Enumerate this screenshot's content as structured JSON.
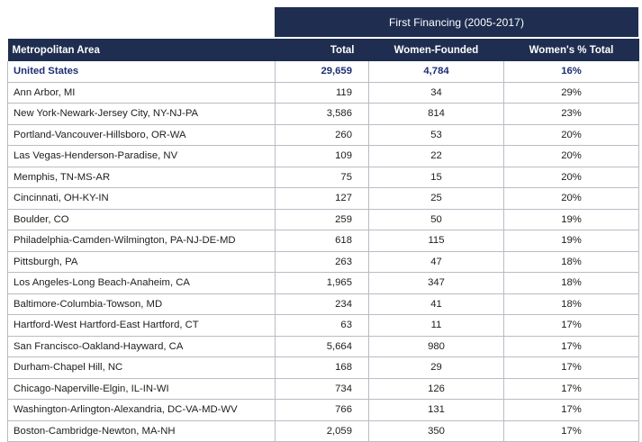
{
  "group_header": "First Financing (2005-2017)",
  "columns": {
    "metro": "Metropolitan Area",
    "total": "Total",
    "women": "Women-Founded",
    "pct": "Women's % Total"
  },
  "rows": [
    {
      "metro": "United States",
      "total": "29,659",
      "women": "4,784",
      "pct": "16%"
    },
    {
      "metro": "Ann Arbor, MI",
      "total": "119",
      "women": "34",
      "pct": "29%"
    },
    {
      "metro": "New York-Newark-Jersey City, NY-NJ-PA",
      "total": "3,586",
      "women": "814",
      "pct": "23%"
    },
    {
      "metro": "Portland-Vancouver-Hillsboro, OR-WA",
      "total": "260",
      "women": "53",
      "pct": "20%"
    },
    {
      "metro": "Las Vegas-Henderson-Paradise, NV",
      "total": "109",
      "women": "22",
      "pct": "20%"
    },
    {
      "metro": "Memphis, TN-MS-AR",
      "total": "75",
      "women": "15",
      "pct": "20%"
    },
    {
      "metro": "Cincinnati, OH-KY-IN",
      "total": "127",
      "women": "25",
      "pct": "20%"
    },
    {
      "metro": "Boulder, CO",
      "total": "259",
      "women": "50",
      "pct": "19%"
    },
    {
      "metro": "Philadelphia-Camden-Wilmington, PA-NJ-DE-MD",
      "total": "618",
      "women": "115",
      "pct": "19%"
    },
    {
      "metro": "Pittsburgh, PA",
      "total": "263",
      "women": "47",
      "pct": "18%"
    },
    {
      "metro": "Los Angeles-Long Beach-Anaheim, CA",
      "total": "1,965",
      "women": "347",
      "pct": "18%"
    },
    {
      "metro": "Baltimore-Columbia-Towson, MD",
      "total": "234",
      "women": "41",
      "pct": "18%"
    },
    {
      "metro": "Hartford-West Hartford-East Hartford, CT",
      "total": "63",
      "women": "11",
      "pct": "17%"
    },
    {
      "metro": "San Francisco-Oakland-Hayward, CA",
      "total": "5,664",
      "women": "980",
      "pct": "17%"
    },
    {
      "metro": "Durham-Chapel Hill, NC",
      "total": "168",
      "women": "29",
      "pct": "17%"
    },
    {
      "metro": "Chicago-Naperville-Elgin, IL-IN-WI",
      "total": "734",
      "women": "126",
      "pct": "17%"
    },
    {
      "metro": "Washington-Arlington-Alexandria, DC-VA-MD-WV",
      "total": "766",
      "women": "131",
      "pct": "17%"
    },
    {
      "metro": "Boston-Cambridge-Newton, MA-NH",
      "total": "2,059",
      "women": "350",
      "pct": "17%"
    }
  ],
  "colors": {
    "header_bg": "#1f2e50",
    "header_text": "#ffffff",
    "highlight_text": "#1f2e74",
    "border": "#b9bcc4"
  }
}
